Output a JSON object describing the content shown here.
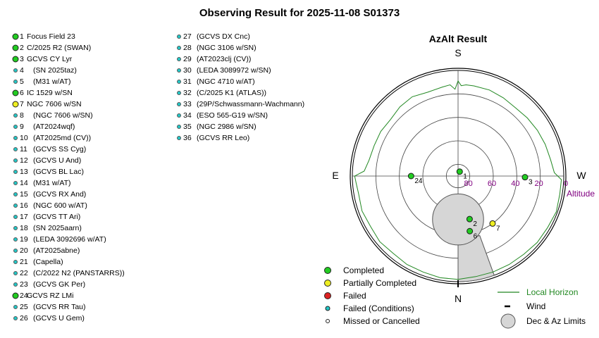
{
  "header": {
    "title": "Observing Result for 2025-11-08 S01373"
  },
  "colors": {
    "completed": "#22cc22",
    "partial": "#eeee22",
    "failed": "#dd2222",
    "failed_conditions": "#22c8c8",
    "missed": "#ffffff",
    "horizon": "#228822",
    "altitude_label": "#800080",
    "limit_fill": "#d6d6d6"
  },
  "targets": [
    {
      "num": "1",
      "name": "Focus Field 23",
      "status": "completed"
    },
    {
      "num": "2",
      "name": "C/2025 R2 (SWAN)",
      "status": "completed"
    },
    {
      "num": "3",
      "name": "GCVS CY Lyr",
      "status": "completed"
    },
    {
      "num": "4",
      "name": "(SN 2025taz)",
      "status": "failed_conditions"
    },
    {
      "num": "5",
      "name": "(M31 w/AT)",
      "status": "failed_conditions"
    },
    {
      "num": "6",
      "name": "IC 1529 w/SN",
      "status": "completed"
    },
    {
      "num": "7",
      "name": "NGC 7606 w/SN",
      "status": "partial"
    },
    {
      "num": "8",
      "name": "(NGC 7606 w/SN)",
      "status": "failed_conditions"
    },
    {
      "num": "9",
      "name": "(AT2024wqf)",
      "status": "failed_conditions"
    },
    {
      "num": "10",
      "name": "(AT2025md (CV))",
      "status": "failed_conditions"
    },
    {
      "num": "11",
      "name": "(GCVS SS Cyg)",
      "status": "failed_conditions"
    },
    {
      "num": "12",
      "name": "(GCVS U And)",
      "status": "failed_conditions"
    },
    {
      "num": "13",
      "name": "(GCVS BL Lac)",
      "status": "failed_conditions"
    },
    {
      "num": "14",
      "name": "(M31 w/AT)",
      "status": "failed_conditions"
    },
    {
      "num": "15",
      "name": "(GCVS RX And)",
      "status": "failed_conditions"
    },
    {
      "num": "16",
      "name": "(NGC 600 w/AT)",
      "status": "failed_conditions"
    },
    {
      "num": "17",
      "name": "(GCVS TT Ari)",
      "status": "failed_conditions"
    },
    {
      "num": "18",
      "name": "(SN 2025aarn)",
      "status": "failed_conditions"
    },
    {
      "num": "19",
      "name": "(LEDA 3092696 w/AT)",
      "status": "failed_conditions"
    },
    {
      "num": "20",
      "name": "(AT2025abne)",
      "status": "failed_conditions"
    },
    {
      "num": "21",
      "name": "(Capella)",
      "status": "failed_conditions"
    },
    {
      "num": "22",
      "name": "(C/2022 N2 (PANSTARRS))",
      "status": "failed_conditions"
    },
    {
      "num": "23",
      "name": "(GCVS GK Per)",
      "status": "failed_conditions"
    },
    {
      "num": "24",
      "name": "GCVS RZ LMi",
      "status": "completed"
    },
    {
      "num": "25",
      "name": "(GCVS RR Tau)",
      "status": "failed_conditions"
    },
    {
      "num": "26",
      "name": "(GCVS U Gem)",
      "status": "failed_conditions"
    },
    {
      "num": "27",
      "name": "(GCVS DX Cnc)",
      "status": "failed_conditions"
    },
    {
      "num": "28",
      "name": "(NGC 3106 w/SN)",
      "status": "failed_conditions"
    },
    {
      "num": "29",
      "name": "(AT2023clj (CV))",
      "status": "failed_conditions"
    },
    {
      "num": "30",
      "name": "(LEDA 3089972 w/SN)",
      "status": "failed_conditions"
    },
    {
      "num": "31",
      "name": "(NGC 4710 w/AT)",
      "status": "failed_conditions"
    },
    {
      "num": "32",
      "name": "(C/2025 K1 (ATLAS))",
      "status": "failed_conditions"
    },
    {
      "num": "33",
      "name": "(29P/Schwassmann-Wachmann)",
      "status": "failed_conditions"
    },
    {
      "num": "34",
      "name": "(ESO 565-G19 w/SN)",
      "status": "failed_conditions"
    },
    {
      "num": "35",
      "name": "(NGC 2986 w/SN)",
      "status": "failed_conditions"
    },
    {
      "num": "36",
      "name": "(GCVS RR Leo)",
      "status": "failed_conditions"
    }
  ],
  "chart_data": {
    "type": "scatter",
    "projection": "polar-azimuth-altitude",
    "title": "AzAlt Result",
    "directions": {
      "top": "S",
      "bottom": "N",
      "left": "E",
      "right": "W"
    },
    "altitude_ticks": [
      80,
      60,
      40,
      20,
      0
    ],
    "altitude_label": "Altitude",
    "points": [
      {
        "label": "1",
        "az": 200,
        "alt": 86,
        "status": "completed"
      },
      {
        "label": "2",
        "az": 345,
        "alt": 52,
        "status": "completed"
      },
      {
        "label": "3",
        "az": 271,
        "alt": 33,
        "status": "completed"
      },
      {
        "label": "6",
        "az": 348,
        "alt": 42,
        "status": "completed"
      },
      {
        "label": "7",
        "az": 324,
        "alt": 40,
        "status": "partial"
      },
      {
        "label": "24",
        "az": 90,
        "alt": 50,
        "status": "completed"
      }
    ],
    "local_horizon": [
      {
        "az": 0,
        "alt": 2
      },
      {
        "az": 10,
        "alt": 2
      },
      {
        "az": 20,
        "alt": 3
      },
      {
        "az": 30,
        "alt": 3
      },
      {
        "az": 40,
        "alt": 4
      },
      {
        "az": 50,
        "alt": 3
      },
      {
        "az": 60,
        "alt": 4
      },
      {
        "az": 70,
        "alt": 3
      },
      {
        "az": 80,
        "alt": 4
      },
      {
        "az": 86,
        "alt": 3
      },
      {
        "az": 90,
        "alt": 2
      },
      {
        "az": 93,
        "alt": 10
      },
      {
        "az": 100,
        "alt": 13
      },
      {
        "az": 110,
        "alt": 14
      },
      {
        "az": 120,
        "alt": 14
      },
      {
        "az": 130,
        "alt": 15
      },
      {
        "az": 140,
        "alt": 13
      },
      {
        "az": 150,
        "alt": 12
      },
      {
        "az": 160,
        "alt": 14
      },
      {
        "az": 170,
        "alt": 13
      },
      {
        "az": 175,
        "alt": 12
      },
      {
        "az": 178,
        "alt": 16
      },
      {
        "az": 180,
        "alt": 9
      },
      {
        "az": 182,
        "alt": 13
      },
      {
        "az": 185,
        "alt": 12
      },
      {
        "az": 190,
        "alt": 12
      },
      {
        "az": 200,
        "alt": 12
      },
      {
        "az": 210,
        "alt": 13
      },
      {
        "az": 220,
        "alt": 14
      },
      {
        "az": 230,
        "alt": 13
      },
      {
        "az": 240,
        "alt": 12
      },
      {
        "az": 250,
        "alt": 11
      },
      {
        "az": 260,
        "alt": 10
      },
      {
        "az": 268,
        "alt": 8
      },
      {
        "az": 272,
        "alt": 2
      },
      {
        "az": 280,
        "alt": 2
      },
      {
        "az": 290,
        "alt": 1
      },
      {
        "az": 300,
        "alt": 2
      },
      {
        "az": 310,
        "alt": 2
      },
      {
        "az": 320,
        "alt": 3
      },
      {
        "az": 330,
        "alt": 3
      },
      {
        "az": 340,
        "alt": 3
      },
      {
        "az": 350,
        "alt": 3
      },
      {
        "az": 360,
        "alt": 2
      }
    ],
    "wind_az": 0,
    "dec_limit": {
      "center_az": 0,
      "center_alt": 53,
      "radius_deg": 15
    },
    "az_limit": {
      "from_az": 340,
      "to_az": 0,
      "inner_alt": 36
    },
    "legend": [
      {
        "key": "completed",
        "label": "Completed"
      },
      {
        "key": "partial",
        "label": "Partially Completed"
      },
      {
        "key": "failed",
        "label": "Failed"
      },
      {
        "key": "failed_conditions",
        "label": "Failed (Conditions)"
      },
      {
        "key": "missed",
        "label": "Missed or Cancelled"
      },
      {
        "key": "horizon",
        "label": "Local Horizon"
      },
      {
        "key": "wind",
        "label": "Wind"
      },
      {
        "key": "limits",
        "label": "Dec & Az Limits"
      }
    ]
  }
}
